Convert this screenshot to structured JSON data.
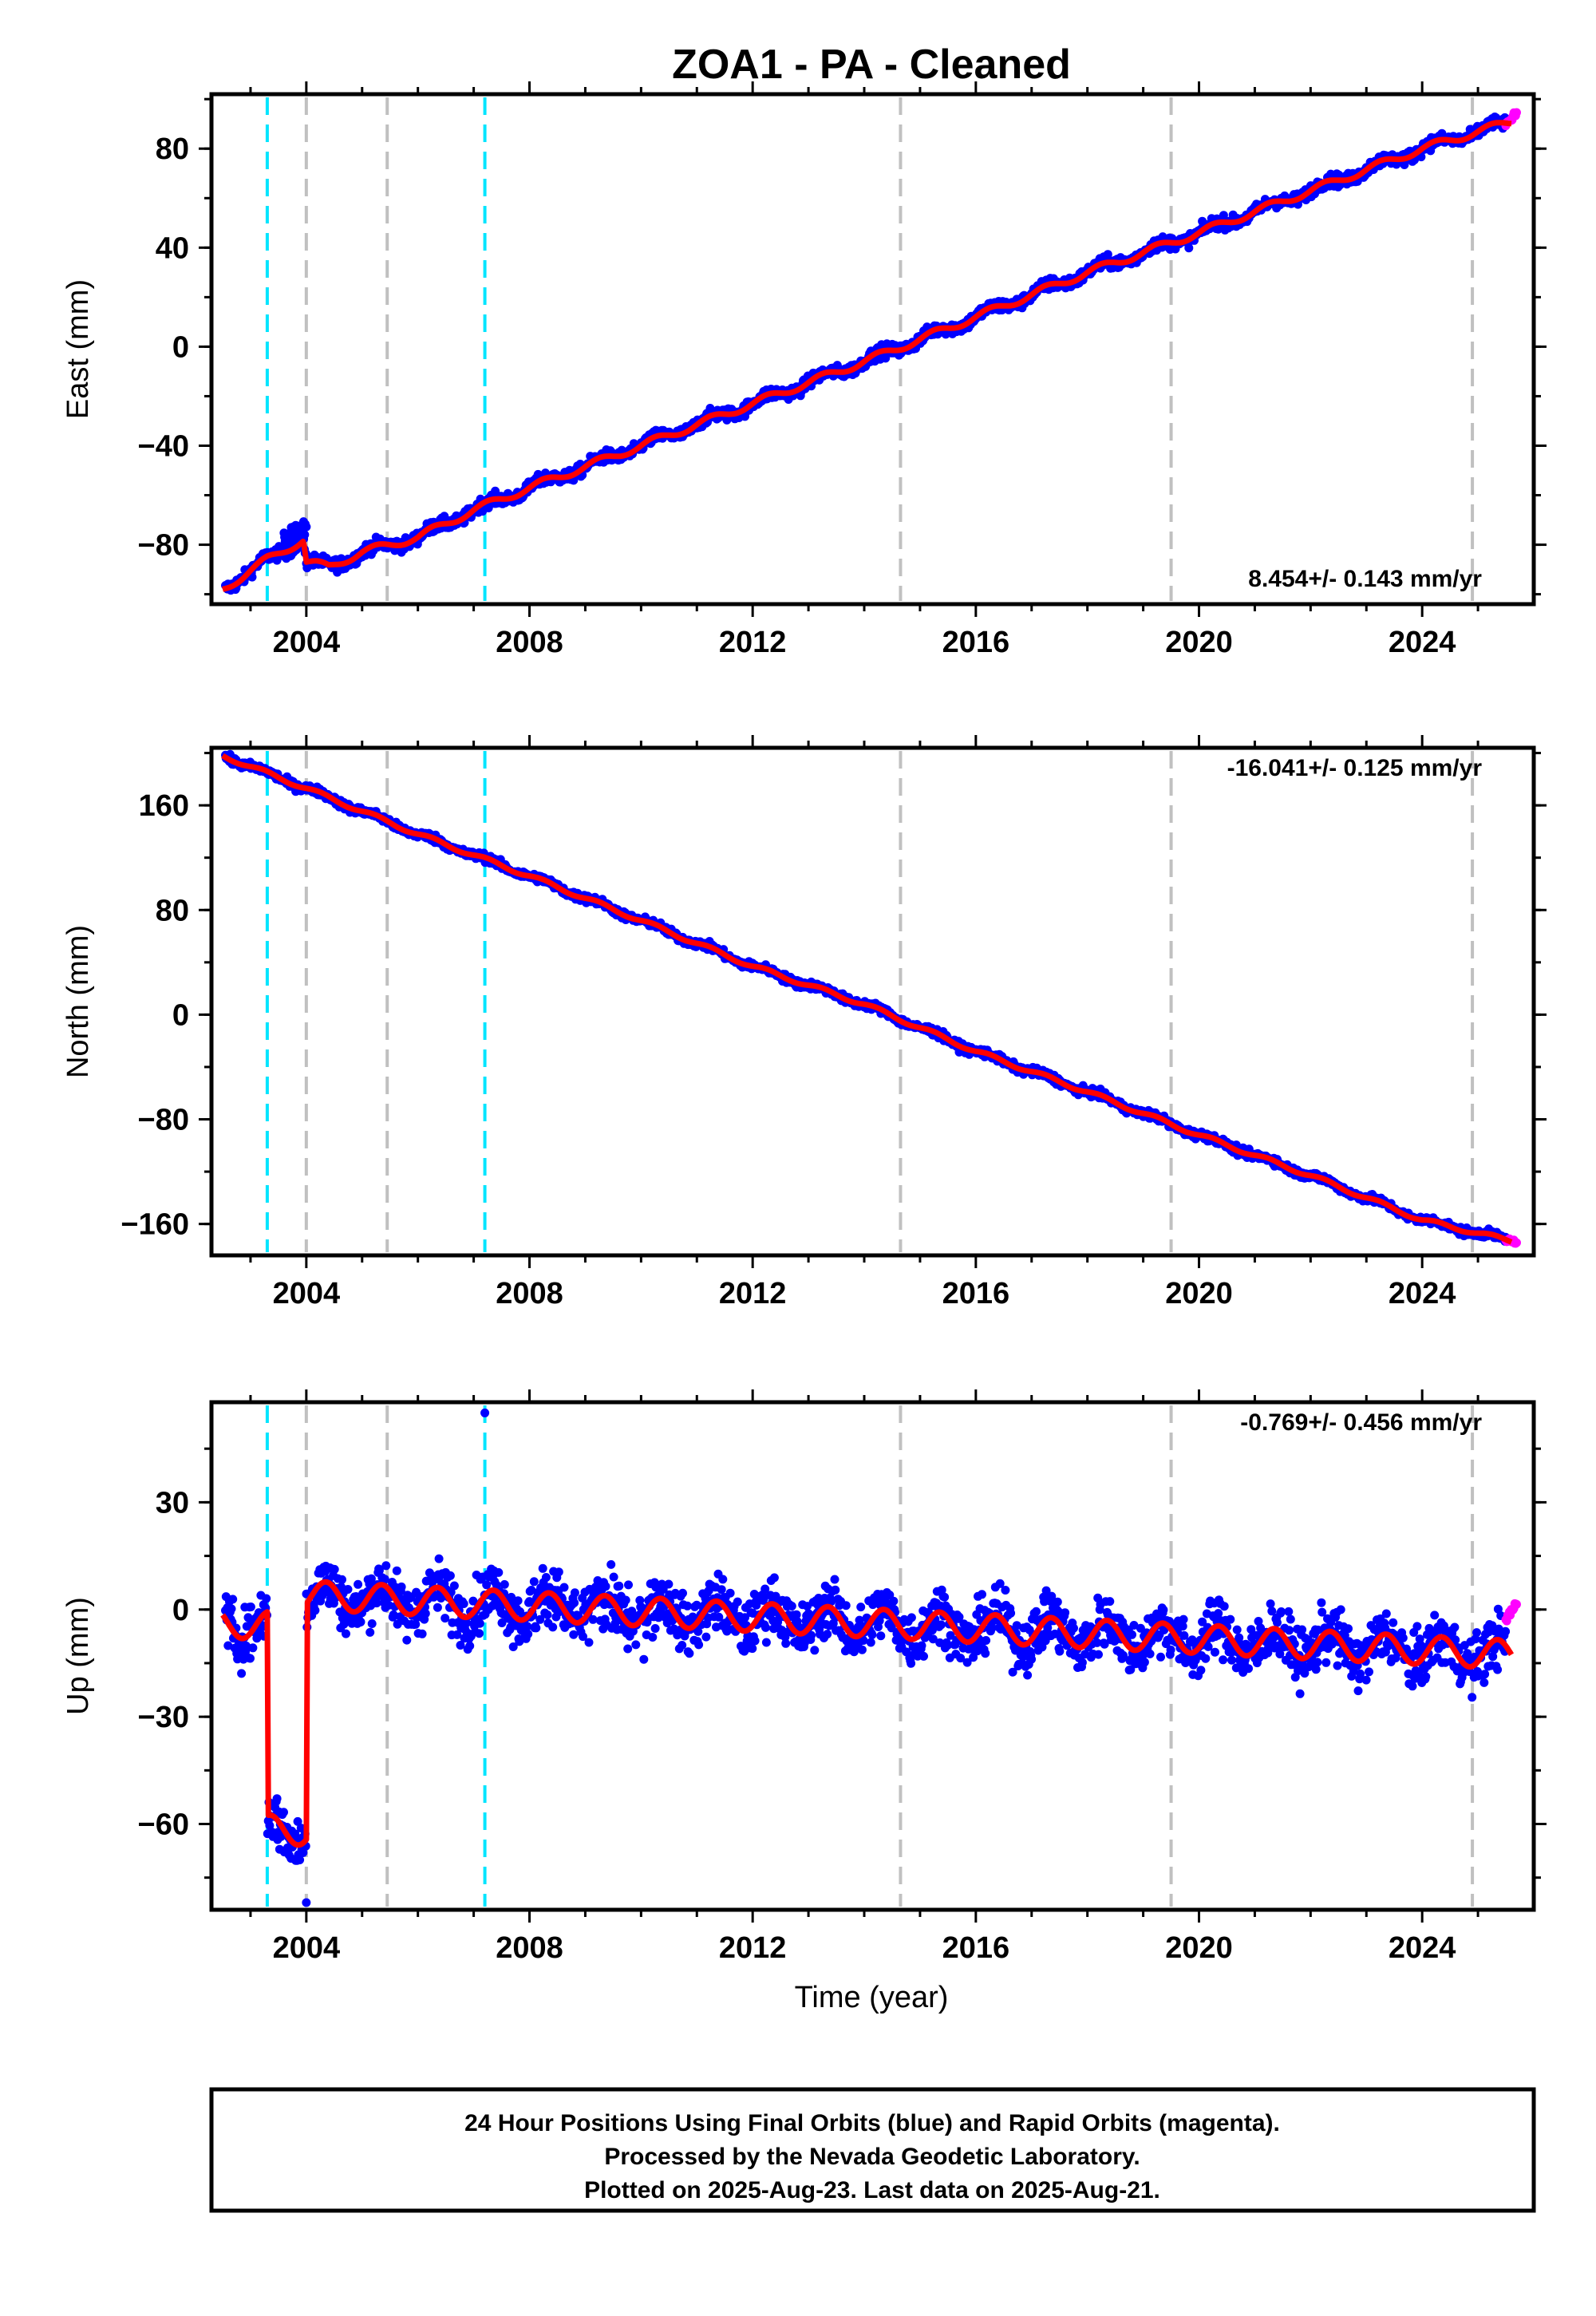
{
  "title": "ZOA1  - PA - Cleaned",
  "colors": {
    "final": "#0000ff",
    "rapid": "#ff00ff",
    "model": "#ff0000",
    "break_cyan": "#00e5ff",
    "break_gray": "#c0c0c0"
  },
  "xlabel": "Time (year)",
  "chart_data": [
    {
      "type": "scatter",
      "ylabel": "East (mm)",
      "rate_label": "8.454+/- 0.143 mm/yr",
      "xlim": [
        2002.3,
        2026.0
      ],
      "ylim": [
        -104,
        102
      ],
      "x_ticks": [
        2004,
        2008,
        2012,
        2016,
        2020,
        2024
      ],
      "y_ticks": [
        -80,
        -40,
        0,
        40,
        80
      ],
      "y_tick_labels": [
        "−80",
        "−40",
        "0",
        "40",
        "80"
      ],
      "breaks_cyan": [
        2003.3,
        2007.2
      ],
      "breaks_gray": [
        2004.0,
        2005.45,
        2014.65,
        2019.5,
        2024.9
      ],
      "model": [
        [
          2002.5,
          -98
        ],
        [
          2003.3,
          -86
        ],
        [
          2003.95,
          -78
        ],
        [
          2004.0,
          -87
        ],
        [
          2004.4,
          -89
        ],
        [
          2005.0,
          -83
        ],
        [
          2006.0,
          -77
        ],
        [
          2007.0,
          -66
        ],
        [
          2008.0,
          -57
        ],
        [
          2010.0,
          -40
        ],
        [
          2012.0,
          -23
        ],
        [
          2014.0,
          -6
        ],
        [
          2016.0,
          12
        ],
        [
          2018.0,
          30
        ],
        [
          2020.0,
          46
        ],
        [
          2022.0,
          63
        ],
        [
          2024.0,
          80
        ],
        [
          2025.6,
          91
        ]
      ],
      "rapid": [
        [
          2025.5,
          90
        ],
        [
          2025.7,
          95
        ]
      ],
      "series": [
        {
          "name": "Final Orbits",
          "values": []
        },
        {
          "name": "Rapid Orbits",
          "values": []
        }
      ]
    },
    {
      "type": "scatter",
      "ylabel": "North (mm)",
      "rate_label": "-16.041+/- 0.125 mm/yr",
      "xlim": [
        2002.3,
        2026.0
      ],
      "ylim": [
        -184,
        204
      ],
      "x_ticks": [
        2004,
        2008,
        2012,
        2016,
        2020,
        2024
      ],
      "y_ticks": [
        -160,
        -80,
        0,
        80,
        160
      ],
      "y_tick_labels": [
        "−160",
        "−80",
        "0",
        "80",
        "160"
      ],
      "breaks_cyan": [
        2003.3,
        2007.2
      ],
      "breaks_gray": [
        2004.0,
        2005.45,
        2014.65,
        2019.5,
        2024.9
      ],
      "model": [
        [
          2002.5,
          198
        ],
        [
          2004.0,
          173
        ],
        [
          2006.0,
          138
        ],
        [
          2008.0,
          106
        ],
        [
          2010.0,
          72
        ],
        [
          2012.0,
          37
        ],
        [
          2014.0,
          8
        ],
        [
          2016.0,
          -28
        ],
        [
          2018.0,
          -59
        ],
        [
          2020.0,
          -92
        ],
        [
          2022.0,
          -123
        ],
        [
          2024.0,
          -157
        ],
        [
          2025.6,
          -173
        ]
      ],
      "rapid": [
        [
          2025.5,
          -172
        ],
        [
          2025.7,
          -174
        ]
      ],
      "series": [
        {
          "name": "Final Orbits",
          "values": []
        },
        {
          "name": "Rapid Orbits",
          "values": []
        }
      ]
    },
    {
      "type": "scatter",
      "ylabel": "Up (mm)",
      "rate_label": "-0.769+/- 0.456 mm/yr",
      "xlim": [
        2002.3,
        2026.0
      ],
      "ylim": [
        -84,
        58
      ],
      "x_ticks": [
        2004,
        2008,
        2012,
        2016,
        2020,
        2024
      ],
      "y_ticks": [
        -60,
        -30,
        0,
        30
      ],
      "y_tick_labels": [
        "−60",
        "−30",
        "0",
        "30"
      ],
      "breaks_cyan": [
        2003.3,
        2007.2
      ],
      "breaks_gray": [
        2004.0,
        2005.45,
        2014.65,
        2019.5,
        2024.9
      ],
      "model_segments": [
        {
          "x_start": 2002.5,
          "x_end": 2003.3,
          "offset": -5
        },
        {
          "x_start": 2003.3,
          "x_end": 2004.0,
          "offset": -62
        },
        {
          "x_start": 2004.0,
          "x_end": 2025.6,
          "offset": 4
        }
      ],
      "model_trend": -0.769,
      "model_amplitude": 4,
      "outliers": [
        [
          2007.2,
          55
        ],
        [
          2004.0,
          -82
        ]
      ],
      "rapid": [
        [
          2025.5,
          -3
        ],
        [
          2025.7,
          2
        ]
      ],
      "series": [
        {
          "name": "Final Orbits",
          "values": []
        },
        {
          "name": "Rapid Orbits",
          "values": []
        }
      ]
    }
  ],
  "footer": {
    "line1": "24 Hour Positions Using Final Orbits (blue) and Rapid Orbits (magenta).",
    "line2": "Processed by the Nevada Geodetic Laboratory.",
    "line3": "Plotted on 2025-Aug-23. Last data on 2025-Aug-21."
  }
}
